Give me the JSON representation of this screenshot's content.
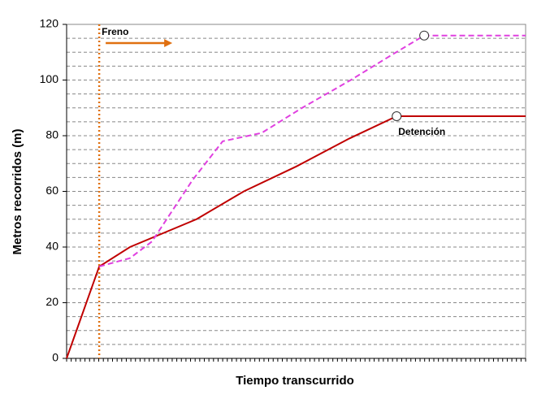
{
  "chart_data": {
    "type": "line",
    "xlabel": "Tiempo transcurrido",
    "ylabel": "Metros recorridos (m)",
    "xlim": [
      0,
      100
    ],
    "ylim": [
      0,
      120
    ],
    "yticks": [
      0,
      20,
      40,
      60,
      80,
      100,
      120
    ],
    "y_minor_ticks": [
      5,
      10,
      15,
      25,
      30,
      35,
      45,
      50,
      55,
      65,
      70,
      75,
      85,
      90,
      95,
      105,
      110,
      115
    ],
    "xticks": [
      0,
      1,
      2,
      3,
      4,
      5,
      6,
      7,
      8,
      9,
      10,
      11,
      12,
      13,
      14,
      15,
      16,
      17,
      18,
      19,
      20,
      21,
      22,
      23,
      24,
      25,
      26,
      27,
      28,
      29,
      30,
      31,
      32,
      33,
      34,
      35,
      36,
      37,
      38,
      39,
      40,
      41,
      42,
      43,
      44,
      45,
      46,
      47,
      48,
      49,
      50,
      51,
      52,
      53,
      54,
      55,
      56,
      57,
      58,
      59,
      60,
      61,
      62,
      63,
      64,
      65,
      66,
      67,
      68,
      69,
      70,
      71,
      72,
      73,
      74,
      75,
      76,
      77,
      78,
      79,
      80,
      81,
      82,
      83,
      84,
      85,
      86,
      87,
      88,
      89,
      90,
      91,
      92,
      93,
      94,
      95,
      96,
      97,
      98,
      99,
      100
    ],
    "grid": true,
    "series": [
      {
        "color": "#c00000",
        "style": "solid",
        "stop_index": 7,
        "x": [
          0,
          7.1,
          13.8,
          28.3,
          38.6,
          50.1,
          61.6,
          71.9,
          100
        ],
        "values": [
          0,
          33,
          40,
          50,
          60,
          69,
          79,
          87,
          87
        ]
      },
      {
        "color": "#e040e0",
        "style": "dashed",
        "stop_index": 9,
        "x": [
          7.1,
          13.8,
          18.6,
          27.4,
          34,
          42.5,
          51.3,
          61.9,
          70.8,
          77.9,
          100
        ],
        "values": [
          33,
          36,
          42,
          64,
          78,
          81,
          90,
          100,
          109,
          116,
          116
        ]
      }
    ],
    "annotations": [
      {
        "text": "Freno",
        "x": 7.1,
        "color": "#e07010"
      },
      {
        "text": "Detención",
        "x": 71.9,
        "y": 87,
        "color": "#c00000"
      }
    ]
  }
}
